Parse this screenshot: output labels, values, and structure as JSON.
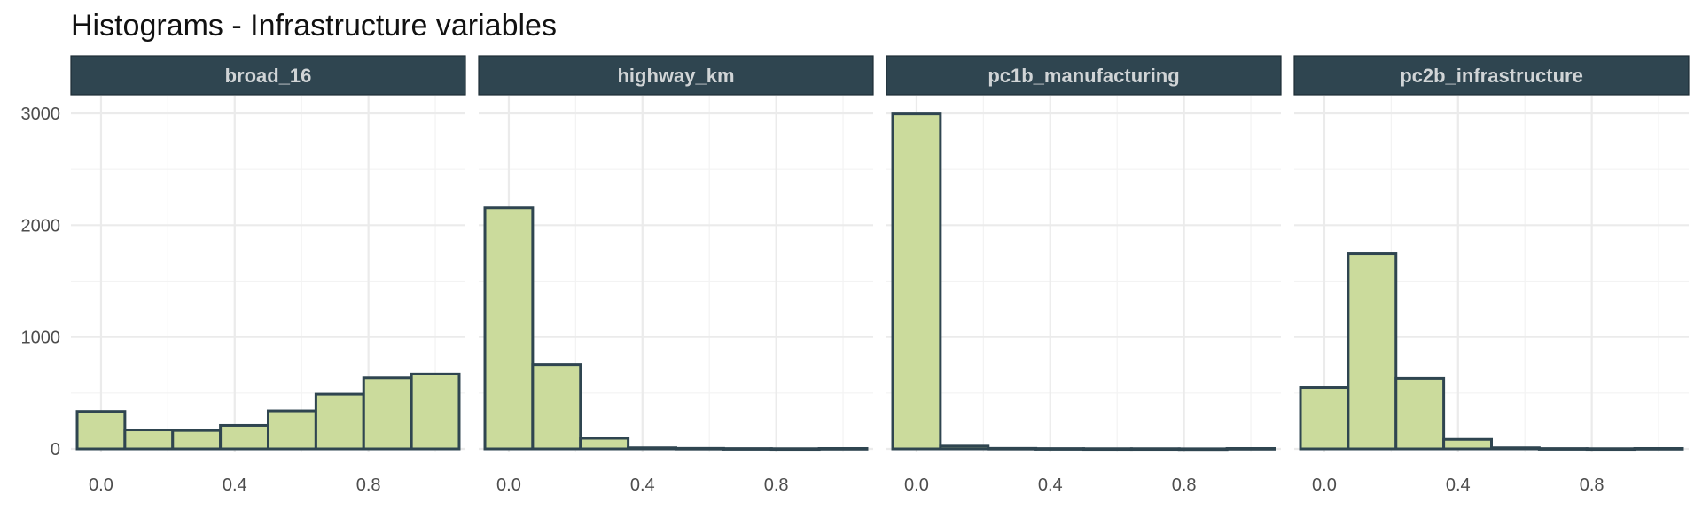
{
  "chart_data": {
    "type": "bar",
    "title": "Histograms - Infrastructure variables",
    "xlabel": "",
    "ylabel": "",
    "ylim": [
      0,
      3150
    ],
    "xlim": [
      -0.09,
      1.09
    ],
    "y_ticks": [
      0,
      1000,
      2000,
      3000
    ],
    "x_ticks": [
      0.0,
      0.4,
      0.8
    ],
    "x_tick_labels": [
      "0.0",
      "0.4",
      "0.8"
    ],
    "grid": true,
    "bin_edges": [
      -0.0714,
      0.0714,
      0.2143,
      0.3571,
      0.5,
      0.6429,
      0.7857,
      0.9286,
      1.0714
    ],
    "bar_fill": "#cbdb9c",
    "bar_stroke": "#2f4550",
    "strip_fill": "#2f4550",
    "panels": [
      {
        "label": "broad_16",
        "counts": [
          335,
          170,
          165,
          210,
          340,
          490,
          635,
          670
        ]
      },
      {
        "label": "highway_km",
        "counts": [
          2155,
          755,
          95,
          10,
          5,
          3,
          2,
          4
        ]
      },
      {
        "label": "pc1b_manufacturing",
        "counts": [
          2995,
          25,
          5,
          3,
          2,
          2,
          1,
          4
        ]
      },
      {
        "label": "pc2b_infrastructure",
        "counts": [
          550,
          1745,
          630,
          85,
          10,
          3,
          2,
          4
        ]
      }
    ]
  }
}
